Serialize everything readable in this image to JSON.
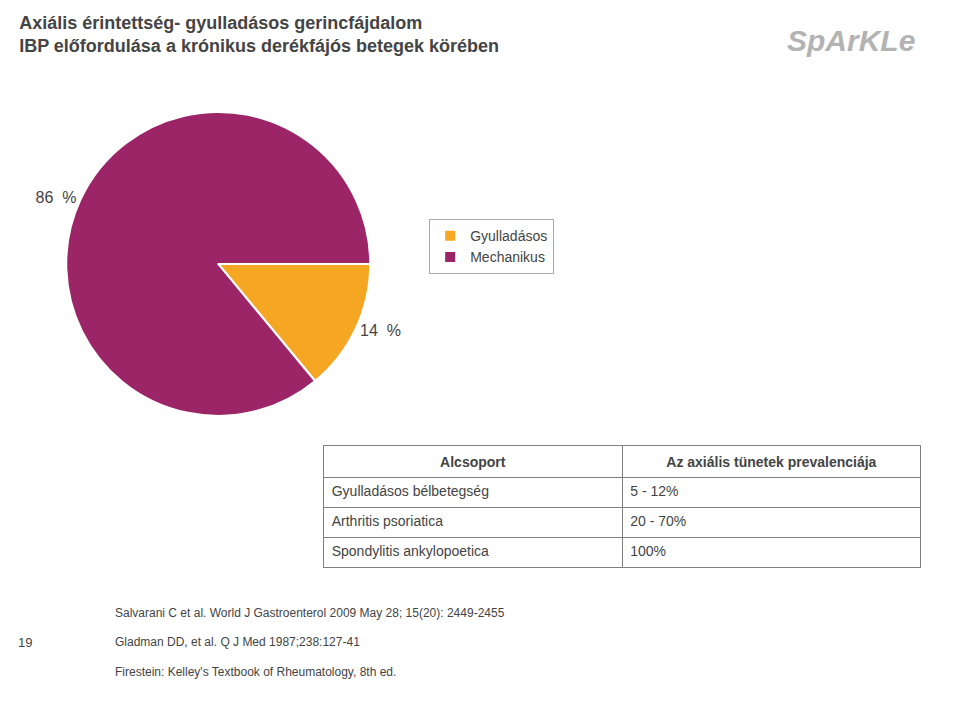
{
  "chart_data": {
    "type": "pie",
    "title": "Axiális érintettség- gyulladásos gerincfájdalom",
    "subtitle": "IBP előfordulása a krónikus derékfájós betegek körében",
    "categories": [
      "Gyulladásos",
      "Mechanikus"
    ],
    "values": [
      14,
      86
    ],
    "value_labels": [
      "14  %",
      "86  %"
    ],
    "data_labels": true,
    "colors": [
      "#f5a623",
      "#9b2567"
    ],
    "legend": "right",
    "table": {
      "header": [
        "Alcsoport",
        "Az axiális tünetek prevalenciája"
      ],
      "rows": [
        [
          "Gyulladásos bélbetegség",
          "5 - 12%"
        ],
        [
          "Arthritis psoriatica",
          "20 - 70%"
        ],
        [
          "Spondylitis ankylopoetica",
          "100%"
        ]
      ]
    },
    "footnotes": [
      "Salvarani C et al. World J Gastroenterol 2009 May 28; 15(20): 2449-2455",
      "Gladman DD, et al. Q J Med 1987;238:127-41",
      "Firestein: Kelley's Textbook of Rheumatology, 8th ed."
    ],
    "annotations": [
      "SpArKLe",
      "19"
    ]
  }
}
